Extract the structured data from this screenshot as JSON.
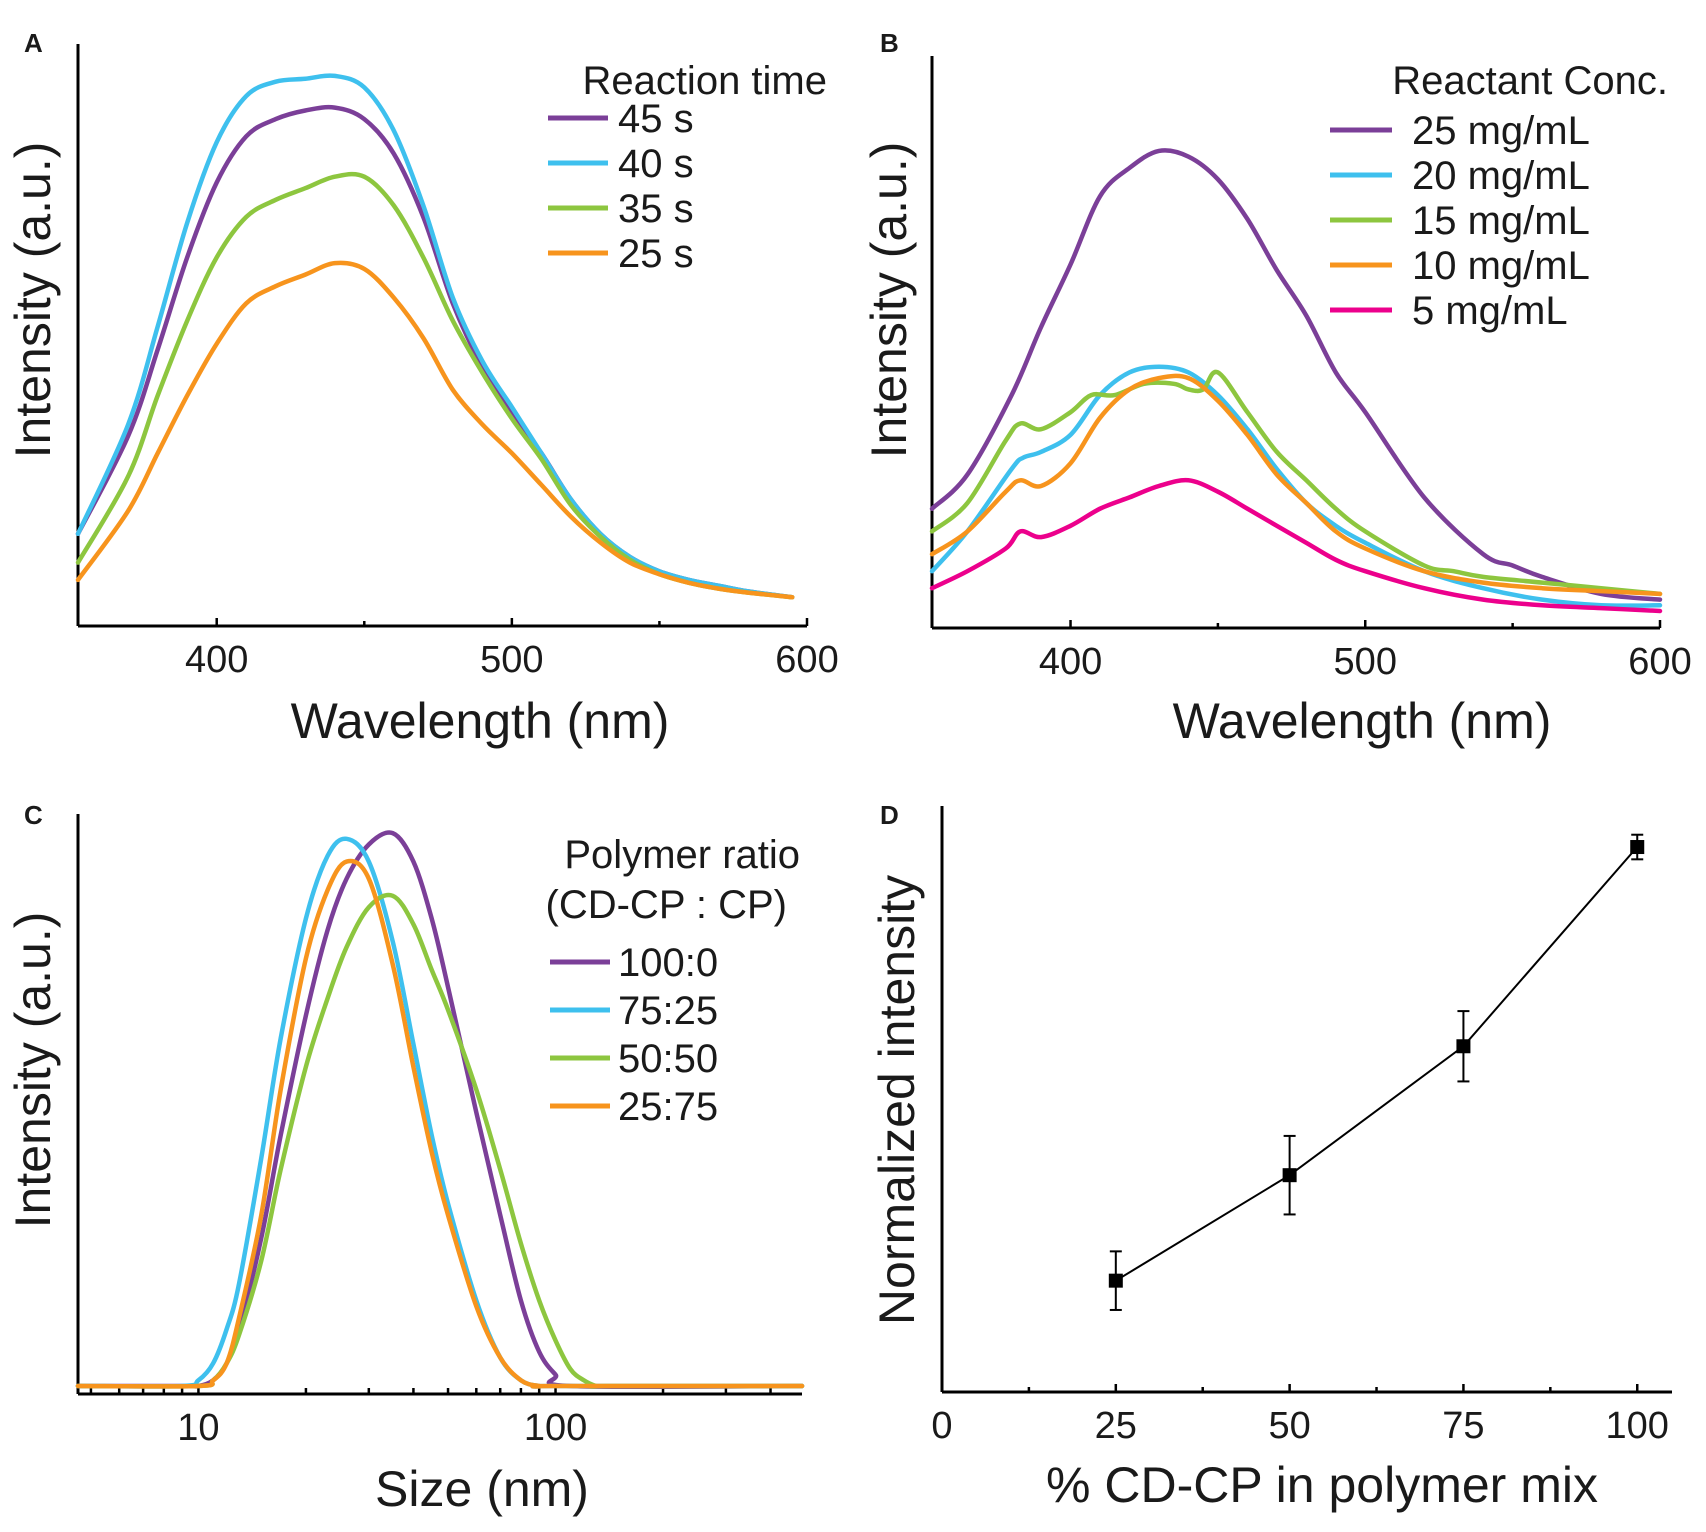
{
  "figure": {
    "panels": [
      "A",
      "B",
      "C",
      "D"
    ]
  },
  "chart_data": [
    {
      "panel": "A",
      "type": "line",
      "title": "",
      "xlabel": "Wavelength (nm)",
      "ylabel": "Intensity (a.u.)",
      "xlim": [
        353,
        600
      ],
      "ylim": [
        0,
        1
      ],
      "x_ticks": [
        400,
        500,
        600
      ],
      "y_ticks": [],
      "legend_title": "Reaction time",
      "legend_position": "top-right",
      "series": [
        {
          "name": "45 s",
          "color": "#7b3f98",
          "x": [
            353,
            370,
            380,
            390,
            400,
            410,
            420,
            430,
            440,
            450,
            460,
            470,
            480,
            490,
            500,
            510,
            520,
            530,
            540,
            550,
            560,
            570,
            580,
            595
          ],
          "y": [
            0.16,
            0.33,
            0.48,
            0.64,
            0.77,
            0.85,
            0.88,
            0.895,
            0.9,
            0.88,
            0.82,
            0.71,
            0.56,
            0.45,
            0.37,
            0.3,
            0.22,
            0.16,
            0.12,
            0.095,
            0.08,
            0.07,
            0.06,
            0.05
          ]
        },
        {
          "name": "40 s",
          "color": "#3ec0ee",
          "x": [
            353,
            370,
            380,
            390,
            400,
            410,
            420,
            430,
            440,
            450,
            460,
            470,
            480,
            490,
            500,
            510,
            520,
            530,
            540,
            550,
            560,
            570,
            580,
            595
          ],
          "y": [
            0.16,
            0.35,
            0.52,
            0.7,
            0.84,
            0.92,
            0.945,
            0.95,
            0.955,
            0.935,
            0.86,
            0.73,
            0.57,
            0.46,
            0.38,
            0.3,
            0.22,
            0.16,
            0.12,
            0.095,
            0.08,
            0.07,
            0.06,
            0.05
          ]
        },
        {
          "name": "35 s",
          "color": "#8dc63f",
          "x": [
            353,
            370,
            380,
            390,
            400,
            410,
            420,
            430,
            440,
            450,
            460,
            470,
            480,
            490,
            500,
            510,
            520,
            530,
            540,
            550,
            560,
            570,
            580,
            595
          ],
          "y": [
            0.11,
            0.26,
            0.4,
            0.53,
            0.64,
            0.71,
            0.74,
            0.76,
            0.78,
            0.78,
            0.73,
            0.64,
            0.53,
            0.44,
            0.36,
            0.29,
            0.21,
            0.155,
            0.115,
            0.09,
            0.075,
            0.065,
            0.058,
            0.05
          ]
        },
        {
          "name": "25 s",
          "color": "#f7941d",
          "x": [
            353,
            370,
            380,
            390,
            400,
            410,
            420,
            430,
            440,
            450,
            460,
            470,
            480,
            490,
            500,
            510,
            520,
            530,
            540,
            550,
            560,
            570,
            580,
            595
          ],
          "y": [
            0.08,
            0.2,
            0.3,
            0.4,
            0.49,
            0.56,
            0.59,
            0.61,
            0.63,
            0.62,
            0.57,
            0.5,
            0.41,
            0.35,
            0.3,
            0.245,
            0.19,
            0.145,
            0.11,
            0.09,
            0.075,
            0.065,
            0.058,
            0.05
          ]
        }
      ]
    },
    {
      "panel": "B",
      "type": "line",
      "title": "",
      "xlabel": "Wavelength (nm)",
      "ylabel": "Intensity (a.u.)",
      "xlim": [
        353,
        600
      ],
      "ylim": [
        0,
        1
      ],
      "x_ticks": [
        400,
        500,
        600
      ],
      "y_ticks": [],
      "legend_title": "Reactant Conc.",
      "legend_position": "top-right",
      "series": [
        {
          "name": "25 mg/mL",
          "color": "#7b3f98",
          "x": [
            353,
            365,
            380,
            390,
            400,
            410,
            420,
            430,
            440,
            450,
            460,
            470,
            480,
            490,
            500,
            520,
            540,
            550,
            560,
            580,
            600
          ],
          "y": [
            0.21,
            0.27,
            0.41,
            0.53,
            0.64,
            0.76,
            0.81,
            0.84,
            0.83,
            0.79,
            0.72,
            0.63,
            0.55,
            0.45,
            0.38,
            0.23,
            0.13,
            0.11,
            0.09,
            0.06,
            0.05
          ]
        },
        {
          "name": "20 mg/mL",
          "color": "#3ec0ee",
          "x": [
            353,
            365,
            380,
            384,
            390,
            400,
            410,
            420,
            430,
            440,
            450,
            460,
            470,
            480,
            490,
            500,
            520,
            540,
            560,
            580,
            600
          ],
          "y": [
            0.1,
            0.17,
            0.28,
            0.3,
            0.31,
            0.34,
            0.41,
            0.45,
            0.46,
            0.45,
            0.41,
            0.35,
            0.28,
            0.22,
            0.18,
            0.15,
            0.1,
            0.07,
            0.05,
            0.04,
            0.04
          ]
        },
        {
          "name": "15 mg/mL",
          "color": "#8dc63f",
          "x": [
            353,
            365,
            378,
            383,
            390,
            400,
            407,
            415,
            425,
            435,
            440,
            445,
            450,
            460,
            470,
            480,
            490,
            500,
            520,
            530,
            540,
            560,
            580,
            600
          ],
          "y": [
            0.17,
            0.22,
            0.33,
            0.36,
            0.35,
            0.38,
            0.41,
            0.41,
            0.43,
            0.43,
            0.42,
            0.42,
            0.45,
            0.38,
            0.31,
            0.26,
            0.21,
            0.17,
            0.11,
            0.1,
            0.09,
            0.08,
            0.07,
            0.06
          ]
        },
        {
          "name": "10 mg/mL",
          "color": "#f7941d",
          "x": [
            353,
            365,
            378,
            383,
            390,
            400,
            410,
            420,
            430,
            440,
            450,
            460,
            470,
            480,
            490,
            500,
            520,
            540,
            560,
            580,
            600
          ],
          "y": [
            0.13,
            0.17,
            0.24,
            0.26,
            0.25,
            0.29,
            0.37,
            0.42,
            0.44,
            0.44,
            0.4,
            0.34,
            0.27,
            0.22,
            0.17,
            0.14,
            0.1,
            0.08,
            0.07,
            0.065,
            0.06
          ]
        },
        {
          "name": "5 mg/mL",
          "color": "#ec008c",
          "x": [
            353,
            365,
            378,
            383,
            390,
            400,
            410,
            420,
            430,
            440,
            450,
            460,
            470,
            480,
            490,
            500,
            520,
            540,
            560,
            580,
            600
          ],
          "y": [
            0.07,
            0.1,
            0.14,
            0.17,
            0.16,
            0.18,
            0.21,
            0.23,
            0.25,
            0.26,
            0.24,
            0.21,
            0.18,
            0.15,
            0.12,
            0.1,
            0.07,
            0.05,
            0.04,
            0.035,
            0.03
          ]
        }
      ]
    },
    {
      "panel": "C",
      "type": "line",
      "title": "",
      "xlabel": "Size (nm)",
      "ylabel": "Intensity (a.u.)",
      "xscale": "log",
      "xlim": [
        4.6,
        490
      ],
      "ylim": [
        0,
        1
      ],
      "x_ticks": [
        10,
        100
      ],
      "y_ticks": [],
      "legend_title": "Polymer ratio",
      "legend_subtitle": "(CD-CP : CP)",
      "legend_position": "top-right",
      "series": [
        {
          "name": "100:0",
          "color": "#7b3f98",
          "x": [
            4.6,
            9,
            10,
            11,
            12,
            13,
            15,
            17,
            20,
            23,
            26,
            30,
            35,
            40,
            45,
            50,
            60,
            70,
            80,
            90,
            100,
            110,
            490
          ],
          "y": [
            0,
            0,
            0,
            0.01,
            0.04,
            0.1,
            0.26,
            0.44,
            0.65,
            0.8,
            0.89,
            0.95,
            0.97,
            0.92,
            0.82,
            0.7,
            0.48,
            0.3,
            0.15,
            0.06,
            0.02,
            0,
            0
          ]
        },
        {
          "name": "75:25",
          "color": "#3ec0ee",
          "x": [
            4.6,
            9,
            10,
            11,
            12,
            13,
            15,
            17,
            20,
            23,
            26,
            30,
            35,
            40,
            45,
            50,
            60,
            70,
            80,
            90,
            100,
            490
          ],
          "y": [
            0,
            0,
            0.01,
            0.04,
            0.1,
            0.18,
            0.4,
            0.61,
            0.82,
            0.93,
            0.96,
            0.92,
            0.78,
            0.6,
            0.44,
            0.32,
            0.15,
            0.05,
            0.01,
            0,
            0,
            0
          ]
        },
        {
          "name": "50:50",
          "color": "#8dc63f",
          "x": [
            4.6,
            10,
            11,
            12,
            13,
            15,
            17,
            20,
            23,
            26,
            30,
            35,
            40,
            45,
            50,
            60,
            70,
            80,
            90,
            100,
            110,
            120,
            130,
            140,
            490
          ],
          "y": [
            0,
            0,
            0.01,
            0.04,
            0.09,
            0.22,
            0.38,
            0.56,
            0.68,
            0.77,
            0.84,
            0.86,
            0.81,
            0.73,
            0.66,
            0.52,
            0.38,
            0.25,
            0.15,
            0.08,
            0.03,
            0.01,
            0,
            0,
            0
          ]
        },
        {
          "name": "25:75",
          "color": "#f7941d",
          "x": [
            4.6,
            10,
            11,
            12,
            13,
            15,
            17,
            20,
            23,
            26,
            30,
            35,
            40,
            45,
            50,
            60,
            70,
            80,
            90,
            100,
            490
          ],
          "y": [
            0,
            0,
            0.01,
            0.04,
            0.12,
            0.3,
            0.52,
            0.75,
            0.87,
            0.92,
            0.89,
            0.74,
            0.56,
            0.41,
            0.3,
            0.14,
            0.05,
            0.01,
            0,
            0,
            0
          ]
        }
      ]
    },
    {
      "panel": "D",
      "type": "scatter",
      "title": "",
      "xlabel": "% CD-CP in polymer mix",
      "ylabel": "Normalized intensity",
      "xlim": [
        0,
        105
      ],
      "ylim": [
        0,
        1
      ],
      "x_ticks": [
        0,
        25,
        50,
        75,
        100
      ],
      "y_ticks": [],
      "grid": false,
      "series": [
        {
          "name": "Normalized intensity",
          "color": "#000000",
          "x": [
            25,
            50,
            75,
            100
          ],
          "y": [
            0.19,
            0.37,
            0.59,
            0.93
          ],
          "yerr": [
            0.05,
            0.067,
            0.06,
            0.021
          ]
        }
      ]
    }
  ]
}
